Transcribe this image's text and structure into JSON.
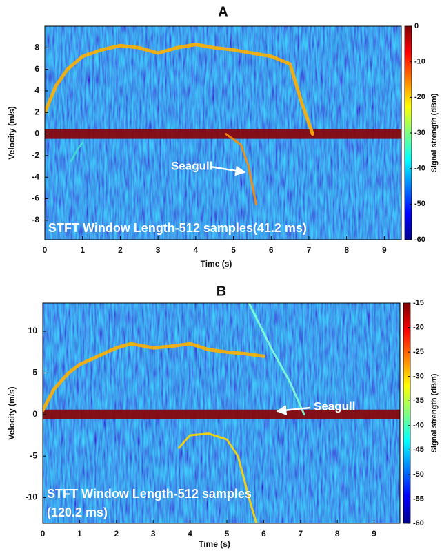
{
  "chart_data": [
    {
      "type": "spectrogram",
      "title": "A",
      "xlabel": "Time (s)",
      "ylabel": "Velocity (m/s)",
      "colorbar_label": "Signal strength (dBm)",
      "xlim": [
        0,
        9.45
      ],
      "ylim": [
        -9.8,
        10
      ],
      "xticks": [
        0,
        1,
        2,
        3,
        4,
        5,
        6,
        7,
        8,
        9
      ],
      "yticks": [
        -8,
        -6,
        -4,
        -2,
        0,
        2,
        4,
        6,
        8
      ],
      "clim": [
        -60,
        0
      ],
      "cticks": [
        -60,
        -50,
        -40,
        -30,
        -20,
        -10,
        0
      ],
      "annotations": [
        "Seagull"
      ],
      "note": [
        "STFT Window Length-512 samples(41.2 ms)"
      ],
      "series": [
        {
          "color": "#8b0000",
          "x": [
            0,
            9.45
          ],
          "values": [
            0,
            0
          ]
        },
        {
          "color": "#ffb000",
          "x": [
            0,
            0.3,
            0.6,
            1,
            1.5,
            2,
            2.5,
            3,
            3.5,
            4,
            4.5,
            5,
            5.5,
            6,
            6.5,
            6.8,
            7.1
          ],
          "values": [
            2,
            4.5,
            6,
            7.2,
            7.8,
            8.2,
            8,
            7.5,
            8,
            8.3,
            8,
            7.8,
            7.5,
            7.2,
            6.5,
            3,
            0
          ]
        },
        {
          "color": "#ff8c00",
          "x": [
            4.8,
            5.2,
            5.4,
            5.6
          ],
          "values": [
            0,
            -1,
            -3,
            -6.5
          ]
        },
        {
          "color": "#40e0d0",
          "x": [
            0.7,
            0.85,
            1
          ],
          "values": [
            -2.5,
            -1.5,
            -0.8
          ]
        }
      ]
    },
    {
      "type": "spectrogram",
      "title": "B",
      "xlabel": "Time (s)",
      "ylabel": "Velocity (m/s)",
      "colorbar_label": "Signal strength (dBm)",
      "xlim": [
        0,
        9.7
      ],
      "ylim": [
        -13.1,
        13.4
      ],
      "xticks": [
        0,
        1,
        2,
        3,
        4,
        5,
        6,
        7,
        8,
        9
      ],
      "yticks": [
        -10,
        -5,
        0,
        5,
        10
      ],
      "clim": [
        -60,
        -15
      ],
      "cticks": [
        -60,
        -55,
        -50,
        -45,
        -40,
        -35,
        -30,
        -25,
        -20,
        -15
      ],
      "annotations": [
        "Seagull"
      ],
      "note": [
        "STFT Window Length-512 samples",
        "(120.2 ms)"
      ],
      "series": [
        {
          "color": "#8b0000",
          "x": [
            0,
            9.7
          ],
          "values": [
            0,
            0
          ]
        },
        {
          "color": "#ffb000",
          "x": [
            0,
            0.3,
            0.7,
            1,
            1.5,
            2,
            2.4,
            3,
            3.5,
            4,
            4.5,
            5,
            5.5,
            6
          ],
          "values": [
            0.5,
            3,
            5,
            6,
            7,
            8,
            8.5,
            8,
            8.2,
            8.5,
            7.8,
            7.5,
            7.3,
            7
          ]
        },
        {
          "color": "#7fffd4",
          "x": [
            5.6,
            6.2,
            6.7,
            7.1
          ],
          "values": [
            13.4,
            8,
            4,
            0
          ]
        },
        {
          "color": "#ffd700",
          "x": [
            3.7,
            4,
            4.5,
            5,
            5.3,
            5.6,
            5.8
          ],
          "values": [
            -4,
            -2.5,
            -2.3,
            -3,
            -5,
            -10,
            -13.1
          ]
        }
      ]
    }
  ]
}
